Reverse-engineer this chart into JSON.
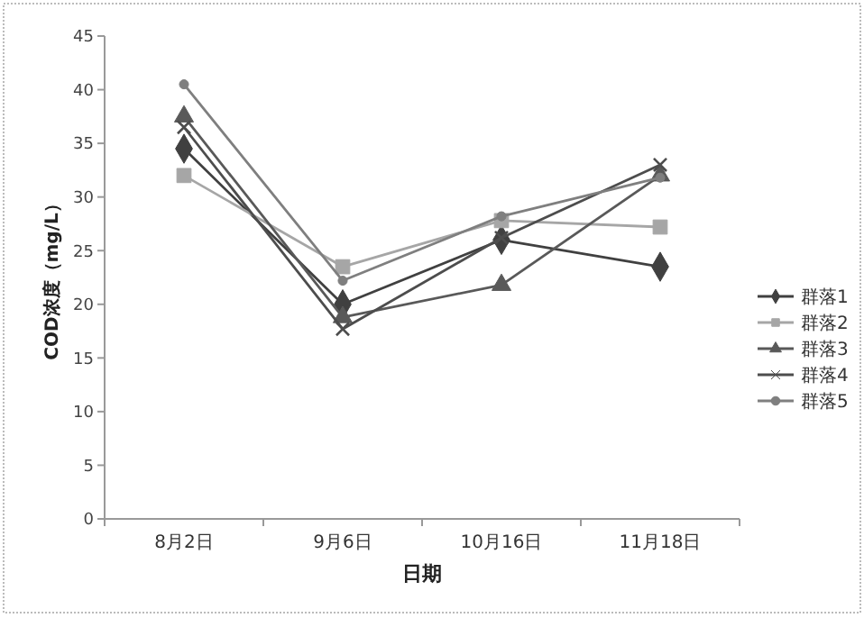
{
  "chart_data": {
    "type": "line",
    "xlabel": "日期",
    "ylabel": "COD浓度（mg/L）",
    "categories": [
      "8月2日",
      "9月6日",
      "10月16日",
      "11月18日"
    ],
    "ylim": [
      0,
      45
    ],
    "yticks": [
      0,
      5,
      10,
      15,
      20,
      25,
      30,
      35,
      40,
      45
    ],
    "grid": false,
    "legend": "right",
    "line_style": "solid",
    "series": [
      {
        "name": "群落1",
        "color": "#404040",
        "marker": "diamond",
        "values": [
          34.5,
          20,
          26,
          23.5
        ]
      },
      {
        "name": "群落2",
        "color": "#a6a6a6",
        "marker": "square",
        "values": [
          32,
          23.5,
          27.8,
          27.2
        ]
      },
      {
        "name": "群落3",
        "color": "#595959",
        "marker": "triangle",
        "values": [
          37.5,
          18.8,
          21.8,
          32
        ]
      },
      {
        "name": "群落4",
        "color": "#4d4d4d",
        "marker": "cross",
        "values": [
          36.5,
          17.7,
          26.2,
          33
        ]
      },
      {
        "name": "群落5",
        "color": "#7f7f7f",
        "marker": "circle",
        "values": [
          40.5,
          22.2,
          28.2,
          31.8
        ]
      }
    ]
  }
}
